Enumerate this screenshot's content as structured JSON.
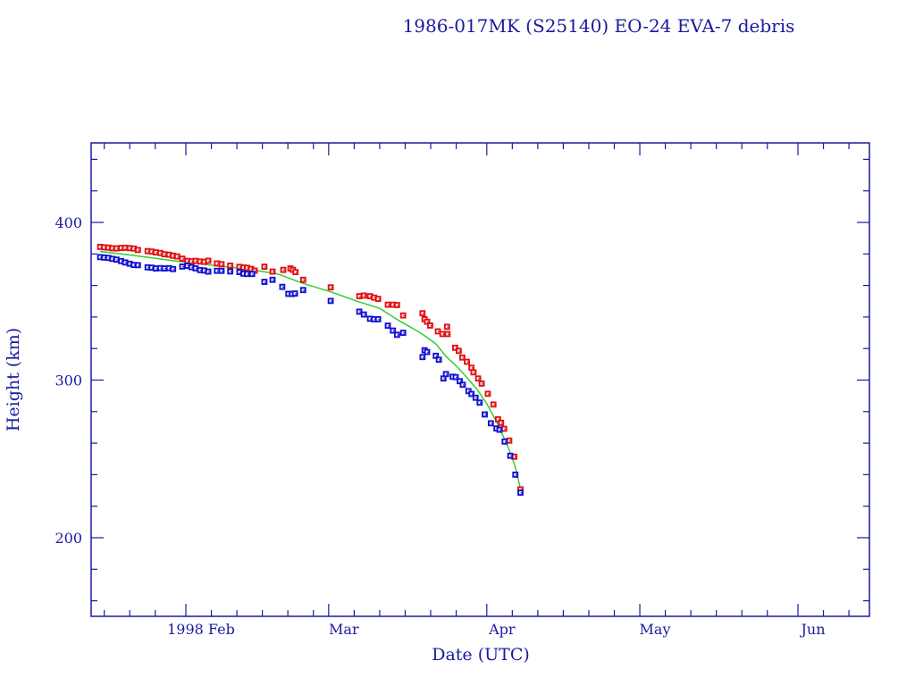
{
  "chart_data": {
    "type": "scatter",
    "title": "1986-017MK (S25140) EO-24 EVA-7 debris",
    "xlabel": "Date (UTC)",
    "ylabel": "Height (km)",
    "ylim": [
      150,
      450
    ],
    "xlim_day_of_year": [
      13,
      168
    ],
    "grid": false,
    "y_ticks": [
      {
        "value": 200,
        "label": "200"
      },
      {
        "value": 300,
        "label": "300"
      },
      {
        "value": 400,
        "label": "400"
      }
    ],
    "x_ticks": [
      {
        "day": 32,
        "label": "1998 Feb"
      },
      {
        "day": 60,
        "label": "Mar"
      },
      {
        "day": 91,
        "label": "Apr"
      },
      {
        "day": 121,
        "label": "May"
      },
      {
        "day": 152,
        "label": "Jun"
      }
    ],
    "colors": {
      "axis": "#1a1aa0",
      "apogee": "#e01010",
      "perigee": "#1010d0",
      "mean": "#33cc33"
    },
    "series": [
      {
        "name": "apogee",
        "marker": "square",
        "points": [
          [
            15.2,
            384.5
          ],
          [
            16.0,
            384.2
          ],
          [
            16.8,
            384.0
          ],
          [
            17.6,
            383.6
          ],
          [
            18.4,
            383.5
          ],
          [
            19.3,
            383.8
          ],
          [
            20.1,
            383.9
          ],
          [
            21.0,
            383.7
          ],
          [
            21.8,
            383.4
          ],
          [
            22.6,
            382.5
          ],
          [
            24.5,
            381.8
          ],
          [
            25.3,
            381.5
          ],
          [
            26.1,
            381.0
          ],
          [
            27.0,
            380.6
          ],
          [
            27.8,
            379.8
          ],
          [
            28.7,
            379.5
          ],
          [
            29.5,
            378.9
          ],
          [
            30.3,
            378.4
          ],
          [
            31.3,
            377.0
          ],
          [
            32.3,
            375.6
          ],
          [
            33.1,
            375.3
          ],
          [
            33.9,
            375.6
          ],
          [
            34.8,
            375.2
          ],
          [
            35.6,
            375.0
          ],
          [
            36.4,
            375.7
          ],
          [
            38.1,
            374.0
          ],
          [
            39.0,
            373.5
          ],
          [
            40.7,
            372.6
          ],
          [
            42.5,
            371.8
          ],
          [
            43.3,
            371.4
          ],
          [
            44.0,
            371.2
          ],
          [
            44.8,
            370.5
          ],
          [
            45.5,
            369.4
          ],
          [
            47.4,
            371.9
          ],
          [
            49.0,
            368.8
          ],
          [
            51.1,
            369.9
          ],
          [
            52.5,
            370.8
          ],
          [
            53.0,
            369.9
          ],
          [
            53.5,
            368.5
          ],
          [
            55.0,
            363.6
          ],
          [
            60.4,
            358.8
          ],
          [
            66.0,
            353.2
          ],
          [
            66.9,
            353.6
          ],
          [
            68.1,
            353.2
          ],
          [
            68.9,
            352.3
          ],
          [
            69.7,
            351.5
          ],
          [
            71.6,
            347.8
          ],
          [
            72.6,
            347.8
          ],
          [
            73.4,
            347.6
          ],
          [
            74.6,
            341.0
          ],
          [
            78.4,
            342.4
          ],
          [
            78.8,
            338.6
          ],
          [
            79.3,
            337.0
          ],
          [
            79.9,
            334.6
          ],
          [
            81.4,
            330.9
          ],
          [
            82.3,
            329.2
          ],
          [
            83.2,
            333.8
          ],
          [
            83.3,
            329.2
          ],
          [
            84.8,
            320.5
          ],
          [
            85.5,
            318.5
          ],
          [
            86.2,
            314.3
          ],
          [
            87.1,
            311.6
          ],
          [
            88.0,
            307.8
          ],
          [
            88.4,
            304.9
          ],
          [
            89.3,
            301.0
          ],
          [
            90.0,
            297.8
          ],
          [
            91.2,
            291.3
          ],
          [
            92.3,
            284.5
          ],
          [
            93.2,
            275.1
          ],
          [
            93.8,
            272.9
          ],
          [
            94.4,
            269.1
          ],
          [
            95.4,
            261.6
          ],
          [
            96.4,
            251.4
          ],
          [
            97.6,
            230.7
          ]
        ]
      },
      {
        "name": "perigee",
        "marker": "square",
        "points": [
          [
            15.2,
            378.0
          ],
          [
            16.0,
            377.7
          ],
          [
            16.8,
            377.5
          ],
          [
            17.6,
            376.9
          ],
          [
            18.4,
            376.4
          ],
          [
            19.3,
            375.5
          ],
          [
            20.1,
            374.6
          ],
          [
            21.0,
            373.8
          ],
          [
            21.8,
            373.0
          ],
          [
            22.6,
            372.9
          ],
          [
            24.5,
            371.5
          ],
          [
            25.3,
            371.3
          ],
          [
            26.1,
            370.8
          ],
          [
            27.0,
            371.0
          ],
          [
            27.8,
            370.8
          ],
          [
            28.7,
            371.0
          ],
          [
            29.5,
            370.4
          ],
          [
            31.3,
            372.0
          ],
          [
            32.3,
            372.5
          ],
          [
            33.1,
            371.6
          ],
          [
            33.9,
            370.9
          ],
          [
            34.8,
            369.8
          ],
          [
            35.6,
            369.5
          ],
          [
            36.4,
            368.8
          ],
          [
            38.1,
            369.3
          ],
          [
            39.0,
            369.3
          ],
          [
            40.7,
            368.9
          ],
          [
            42.5,
            368.5
          ],
          [
            43.3,
            367.5
          ],
          [
            44.0,
            367.3
          ],
          [
            45.0,
            367.3
          ],
          [
            47.4,
            362.3
          ],
          [
            49.0,
            363.6
          ],
          [
            50.9,
            359.1
          ],
          [
            52.1,
            354.7
          ],
          [
            52.8,
            354.6
          ],
          [
            53.4,
            354.9
          ],
          [
            55.0,
            357.1
          ],
          [
            60.4,
            350.2
          ],
          [
            66.0,
            343.4
          ],
          [
            66.9,
            341.6
          ],
          [
            68.1,
            338.9
          ],
          [
            68.9,
            338.6
          ],
          [
            69.7,
            338.6
          ],
          [
            71.6,
            334.5
          ],
          [
            72.6,
            331.4
          ],
          [
            73.4,
            328.7
          ],
          [
            74.6,
            330.0
          ],
          [
            78.4,
            314.6
          ],
          [
            78.8,
            318.9
          ],
          [
            79.3,
            317.8
          ],
          [
            81.0,
            315.4
          ],
          [
            81.6,
            312.9
          ],
          [
            82.5,
            301.0
          ],
          [
            83.0,
            303.8
          ],
          [
            84.3,
            302.1
          ],
          [
            84.9,
            301.9
          ],
          [
            85.7,
            299.3
          ],
          [
            86.3,
            297.0
          ],
          [
            87.4,
            293.0
          ],
          [
            88.0,
            291.2
          ],
          [
            88.8,
            288.8
          ],
          [
            89.6,
            285.7
          ],
          [
            90.6,
            278.2
          ],
          [
            91.8,
            272.6
          ],
          [
            92.9,
            269.3
          ],
          [
            93.5,
            268.5
          ],
          [
            94.5,
            261.0
          ],
          [
            95.6,
            252.0
          ],
          [
            96.6,
            240.0
          ],
          [
            97.6,
            228.6
          ]
        ]
      },
      {
        "name": "mean",
        "marker": "line",
        "points": [
          [
            15.2,
            381.6
          ],
          [
            22.0,
            379.0
          ],
          [
            30.0,
            375.5
          ],
          [
            38.0,
            372.5
          ],
          [
            44.0,
            370.5
          ],
          [
            50.0,
            367.3
          ],
          [
            55.0,
            361.3
          ],
          [
            60.4,
            356.0
          ],
          [
            66.0,
            349.5
          ],
          [
            70.0,
            345.5
          ],
          [
            74.0,
            337.3
          ],
          [
            78.0,
            330.0
          ],
          [
            81.0,
            323.0
          ],
          [
            83.0,
            315.0
          ],
          [
            85.0,
            309.0
          ],
          [
            87.0,
            302.0
          ],
          [
            89.0,
            294.5
          ],
          [
            91.0,
            285.0
          ],
          [
            93.0,
            273.0
          ],
          [
            95.0,
            259.0
          ],
          [
            96.5,
            246.0
          ],
          [
            97.6,
            231.0
          ]
        ]
      }
    ]
  }
}
